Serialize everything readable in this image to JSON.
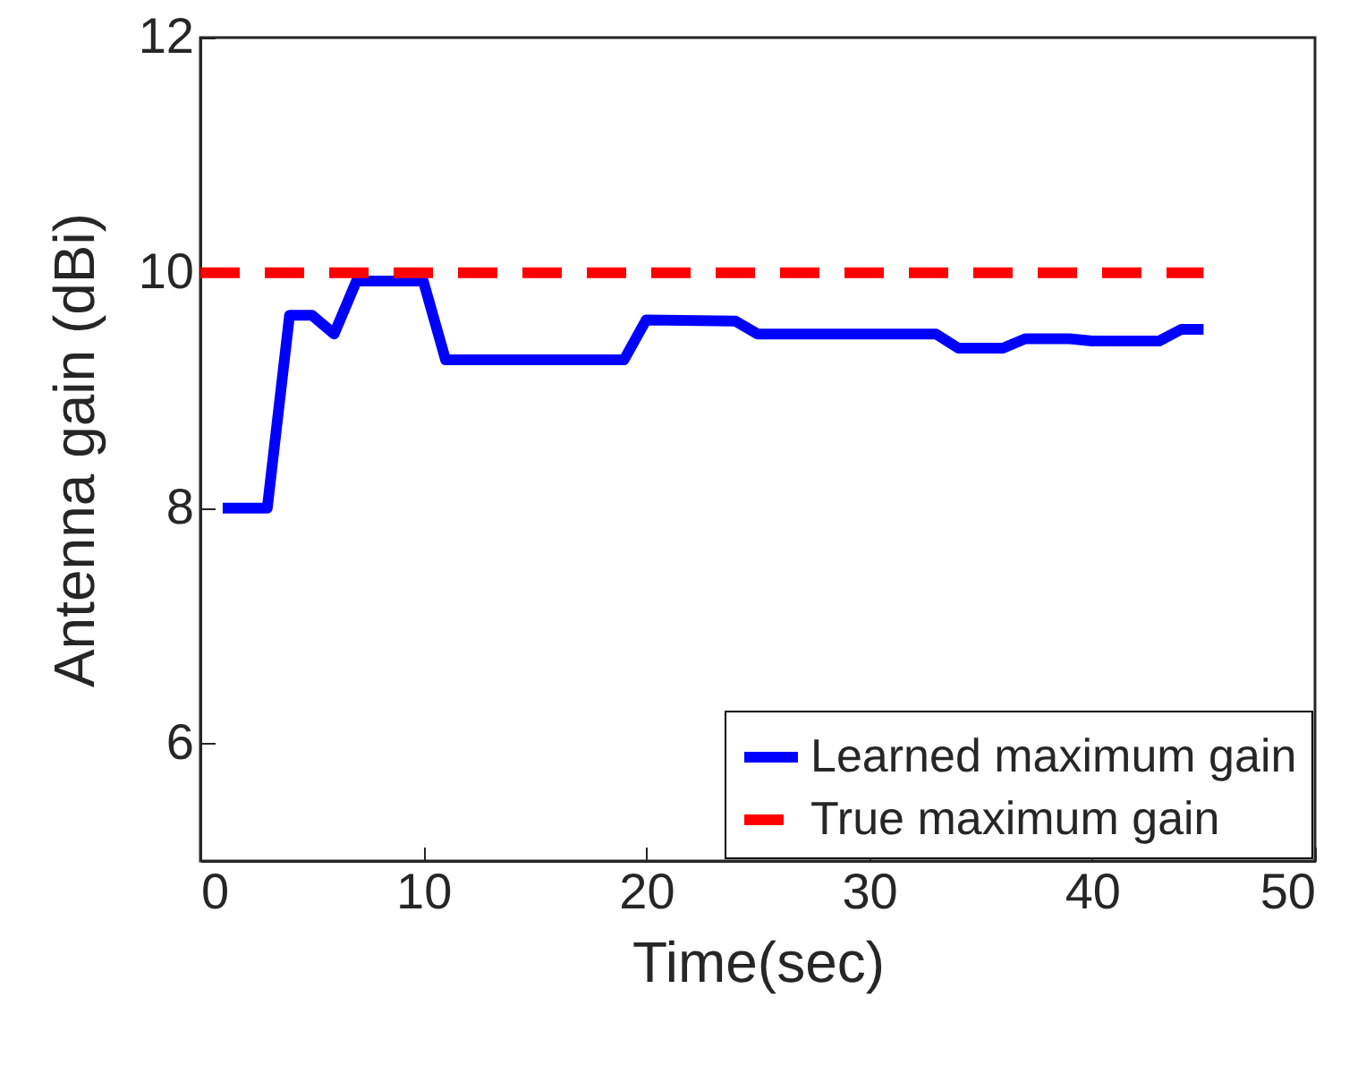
{
  "chart_data": {
    "type": "line",
    "xlabel": "Time(sec)",
    "ylabel": "Antenna gain (dBi)",
    "xlim": [
      0,
      50
    ],
    "xticks": [
      0,
      10,
      20,
      30,
      40,
      50
    ],
    "ylim": [
      5,
      12
    ],
    "yticks": [
      6,
      8,
      10,
      12
    ],
    "grid": false,
    "legend": "bottom right",
    "series": [
      {
        "name": "Learned maximum gain",
        "color": "#0000ff",
        "line_style": "solid",
        "x": [
          1,
          3,
          4,
          5,
          6,
          7,
          10,
          11,
          19,
          20,
          24,
          25,
          33,
          34,
          36,
          37,
          39,
          40,
          43,
          44,
          45
        ],
        "values": [
          8,
          8,
          9.64,
          9.64,
          9.48,
          9.93,
          9.93,
          9.26,
          9.26,
          9.6,
          9.59,
          9.48,
          9.48,
          9.36,
          9.36,
          9.44,
          9.44,
          9.42,
          9.42,
          9.52,
          9.52
        ]
      },
      {
        "name": "True maximum gain",
        "color": "#ff0000",
        "line_style": "dashed",
        "x": [
          0,
          45
        ],
        "values": [
          10,
          10
        ]
      }
    ]
  }
}
